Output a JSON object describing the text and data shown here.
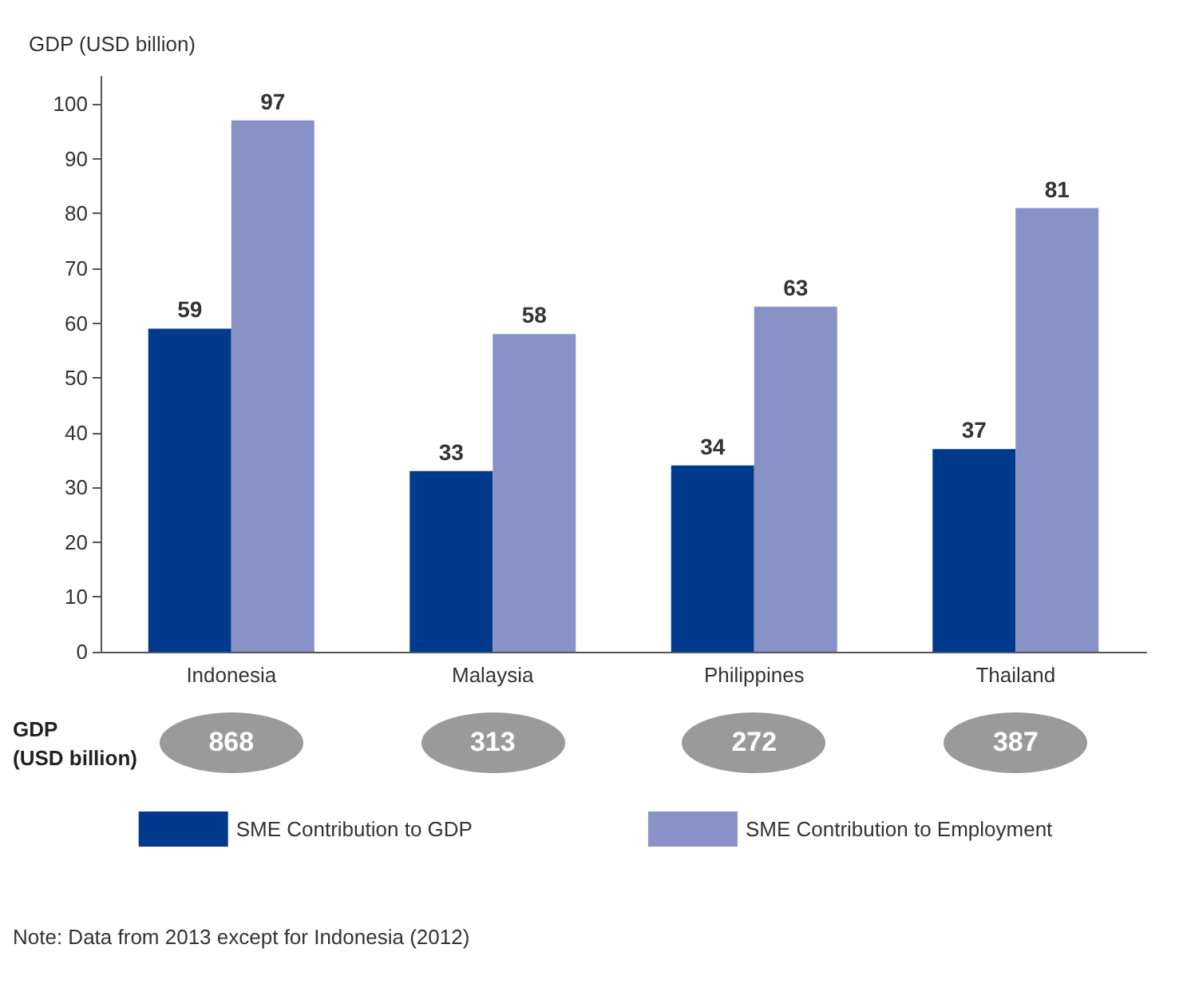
{
  "chart_data": {
    "type": "bar",
    "ylabel": "GDP (USD billion)",
    "categories": [
      "Indonesia",
      "Malaysia",
      "Philippines",
      "Thailand"
    ],
    "series": [
      {
        "name": "SME Contribution to GDP",
        "color": "#003a8c",
        "values": [
          59,
          33,
          34,
          37
        ]
      },
      {
        "name": "SME Contribution to Employment",
        "color": "#8892c6",
        "values": [
          97,
          58,
          63,
          81
        ]
      }
    ],
    "ylim": [
      0,
      105
    ],
    "yticks": [
      0,
      10,
      20,
      30,
      40,
      50,
      60,
      70,
      80,
      90,
      100
    ],
    "grid": false,
    "data_labels": true,
    "legend": "bottom",
    "annotations": [
      "GDP\n(USD billion)",
      "868",
      "313",
      "272",
      "387",
      "Note: Data from 2013 except for Indonesia (2012)"
    ]
  }
}
